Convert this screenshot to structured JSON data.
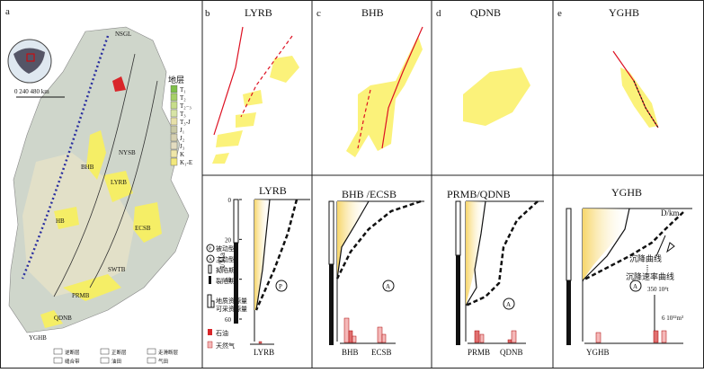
{
  "panel_a": {
    "letter": "a",
    "north_label": "NSGL",
    "scale": "0   240  480 km",
    "strata_title": "地层",
    "strata": [
      "T₁",
      "T₂",
      "T₂₋₃",
      "T₃",
      "T₃-J",
      "J₁",
      "J₂",
      "J₃",
      "K",
      "K₁-E"
    ],
    "basins": [
      "NYSB",
      "BHB",
      "LYRB",
      "HB",
      "ECSB",
      "SWTB",
      "PRMB",
      "QDNB",
      "YGHB"
    ],
    "legend": [
      "逆断层",
      "正断层",
      "走滑断层",
      "缝合带",
      "油田",
      "气田"
    ]
  },
  "top_panels": [
    {
      "letter": "b",
      "title": "LYRB"
    },
    {
      "letter": "c",
      "title": "BHB"
    },
    {
      "letter": "d",
      "title": "QDNB"
    },
    {
      "letter": "e",
      "title": "YGHB"
    }
  ],
  "bottom_panels": [
    {
      "title": "LYRB",
      "type_mark": "P",
      "bars": [
        "LYRB"
      ]
    },
    {
      "title": "BHB /ECSB",
      "type_mark": "A",
      "bars": [
        "BHB",
        "ECSB"
      ]
    },
    {
      "title": "PRMB/QDNB",
      "type_mark": "A",
      "bars": [
        "PRMB",
        "QDNB"
      ]
    },
    {
      "title": "YGHB",
      "type_mark": "A",
      "bars": [
        "YGHB"
      ]
    }
  ],
  "time_axis": {
    "label": "t/Ma",
    "ticks": [
      0,
      20,
      40,
      60
    ]
  },
  "legend": {
    "passive": "P",
    "passive_label": "被动型",
    "active": "A",
    "active_label": "主动型",
    "sag": "拗陷期",
    "rift": "裂陷期",
    "geo_resource": "地质资源量",
    "recoverable": "可采资源量",
    "oil": "石油",
    "gas": "天然气"
  },
  "panel_e_notes": {
    "depth": "D/km",
    "subsidence": "沉降曲线",
    "rate": "沉降速率曲线",
    "oil_scale": "350  10⁴t",
    "gas_scale": "6  10¹²m³"
  }
}
